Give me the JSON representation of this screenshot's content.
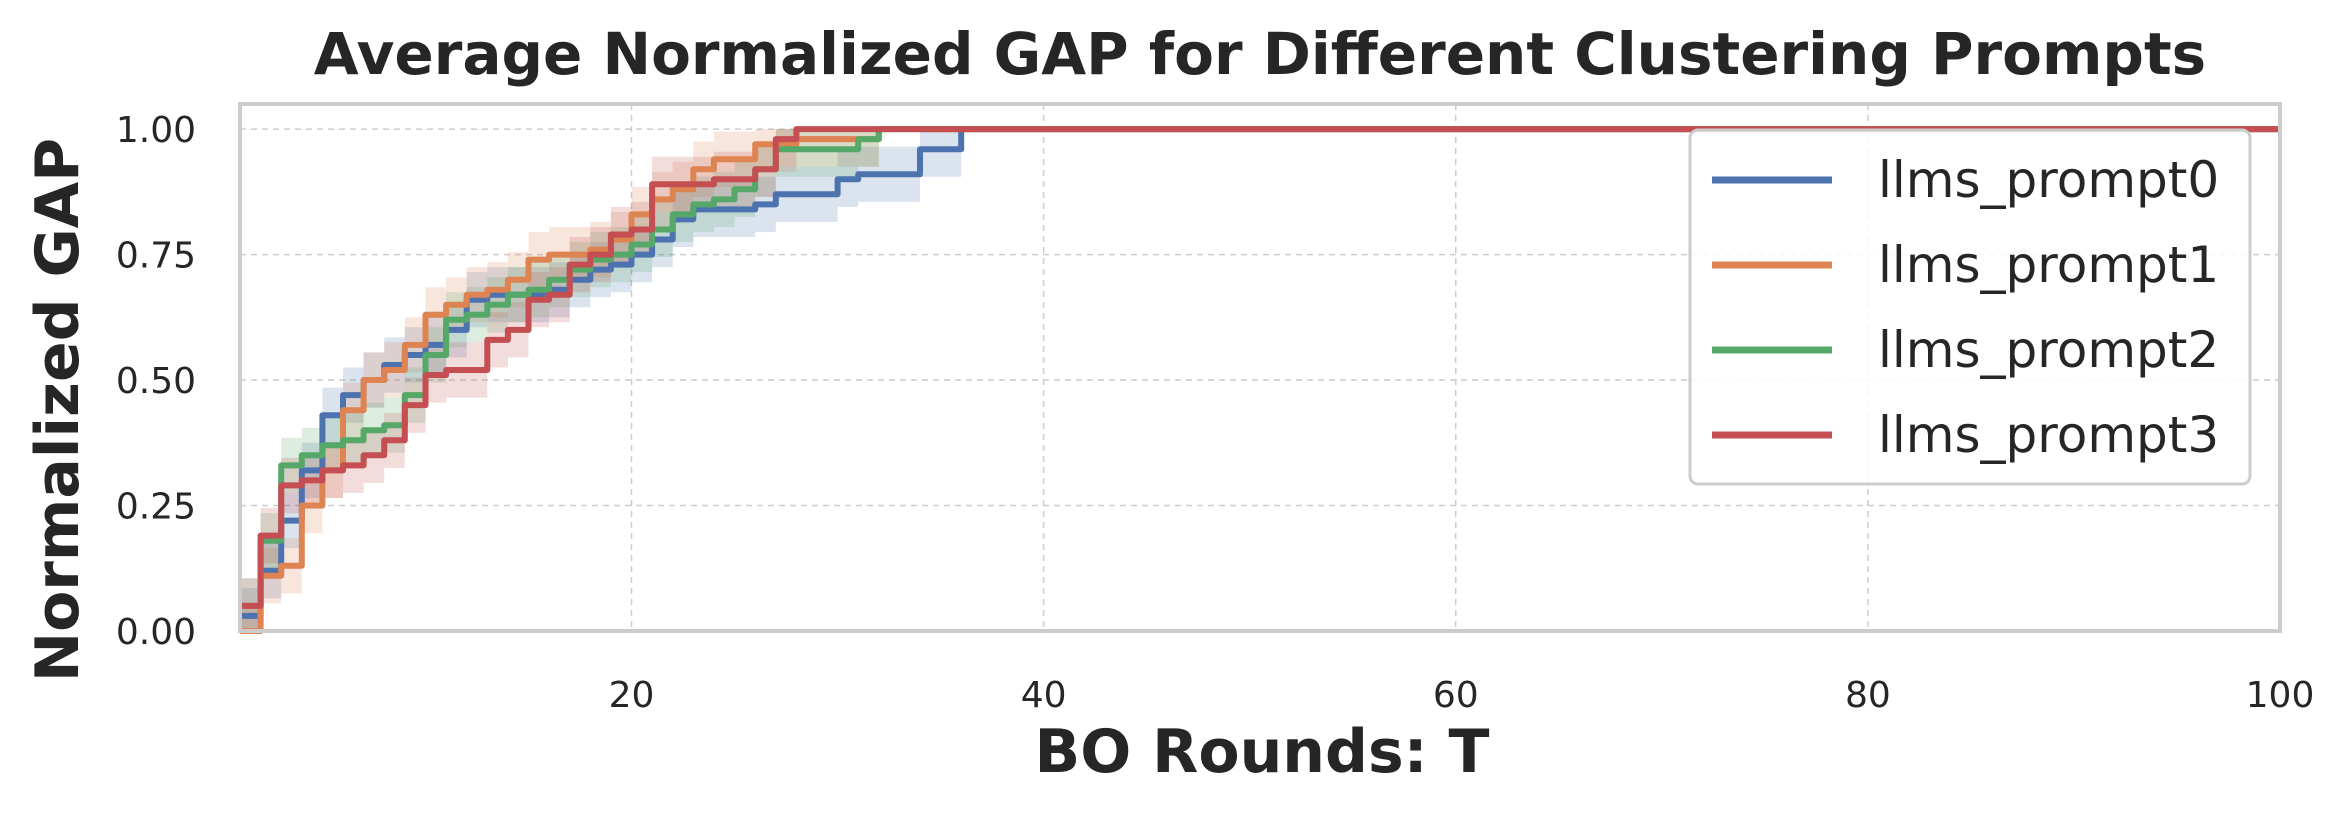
{
  "chart_data": {
    "type": "line",
    "title": "Average Normalized GAP for Different Clustering Prompts",
    "xlabel": "BO Rounds: T",
    "ylabel": "Normalized GAP",
    "xlim": [
      1,
      100
    ],
    "ylim": [
      0,
      1.05
    ],
    "xticks": [
      "20",
      "40",
      "60",
      "80",
      "100"
    ],
    "yticks": [
      "0.00",
      "0.25",
      "0.50",
      "0.75",
      "1.00"
    ],
    "grid": true,
    "legend_position": "top-right",
    "series": [
      {
        "name": "llms_prompt0",
        "color": "#4c72b0",
        "x": [
          1,
          2,
          3,
          4,
          5,
          6,
          7,
          8,
          9,
          10,
          11,
          12,
          13,
          14,
          15,
          16,
          17,
          18,
          19,
          20,
          21,
          22,
          23,
          24,
          25,
          26,
          27,
          28,
          29,
          30,
          31,
          32,
          33,
          34,
          35,
          36,
          100
        ],
        "y": [
          0.03,
          0.12,
          0.22,
          0.32,
          0.43,
          0.47,
          0.5,
          0.53,
          0.55,
          0.57,
          0.6,
          0.66,
          0.67,
          0.67,
          0.67,
          0.68,
          0.7,
          0.72,
          0.73,
          0.75,
          0.78,
          0.82,
          0.84,
          0.84,
          0.84,
          0.85,
          0.87,
          0.87,
          0.87,
          0.9,
          0.91,
          0.91,
          0.91,
          0.96,
          0.96,
          1.0,
          1.0
        ]
      },
      {
        "name": "llms_prompt1",
        "color": "#dd8452",
        "x": [
          1,
          2,
          3,
          4,
          5,
          6,
          7,
          8,
          9,
          10,
          11,
          12,
          13,
          14,
          15,
          16,
          17,
          18,
          19,
          20,
          21,
          22,
          23,
          24,
          25,
          26,
          27,
          28,
          29,
          30,
          31,
          32,
          100
        ],
        "y": [
          0.0,
          0.11,
          0.13,
          0.25,
          0.32,
          0.44,
          0.5,
          0.52,
          0.57,
          0.63,
          0.65,
          0.67,
          0.68,
          0.7,
          0.74,
          0.75,
          0.75,
          0.76,
          0.78,
          0.83,
          0.86,
          0.88,
          0.92,
          0.94,
          0.94,
          0.97,
          0.97,
          0.98,
          0.98,
          0.98,
          0.98,
          1.0,
          1.0
        ]
      },
      {
        "name": "llms_prompt2",
        "color": "#55a868",
        "x": [
          1,
          2,
          3,
          4,
          5,
          6,
          7,
          8,
          9,
          10,
          11,
          12,
          13,
          14,
          15,
          16,
          17,
          18,
          19,
          20,
          21,
          22,
          23,
          24,
          25,
          26,
          27,
          28,
          29,
          30,
          31,
          32,
          100
        ],
        "y": [
          0.05,
          0.18,
          0.33,
          0.35,
          0.37,
          0.38,
          0.4,
          0.41,
          0.47,
          0.55,
          0.62,
          0.63,
          0.65,
          0.67,
          0.68,
          0.7,
          0.72,
          0.74,
          0.75,
          0.77,
          0.8,
          0.83,
          0.85,
          0.86,
          0.88,
          0.92,
          0.96,
          0.96,
          0.96,
          0.96,
          0.98,
          1.0,
          1.0
        ]
      },
      {
        "name": "llms_prompt3",
        "color": "#c44e52",
        "x": [
          1,
          2,
          3,
          4,
          5,
          6,
          7,
          8,
          9,
          10,
          11,
          12,
          13,
          14,
          15,
          16,
          17,
          18,
          19,
          20,
          21,
          22,
          23,
          24,
          25,
          26,
          27,
          28,
          100
        ],
        "y": [
          0.05,
          0.19,
          0.29,
          0.3,
          0.32,
          0.33,
          0.35,
          0.38,
          0.45,
          0.51,
          0.52,
          0.52,
          0.58,
          0.6,
          0.66,
          0.67,
          0.73,
          0.75,
          0.79,
          0.8,
          0.89,
          0.89,
          0.89,
          0.9,
          0.9,
          0.92,
          0.98,
          1.0,
          1.0
        ]
      }
    ]
  }
}
